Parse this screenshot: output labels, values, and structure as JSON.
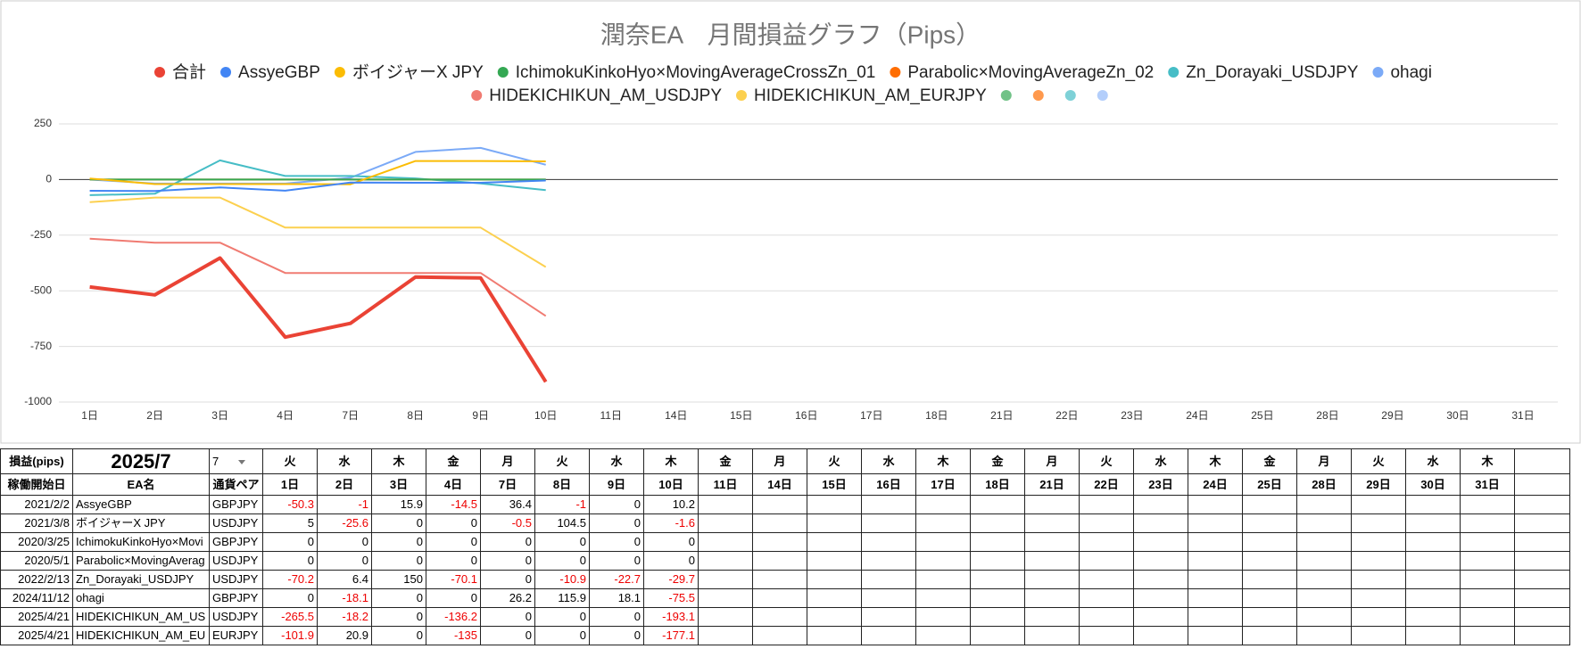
{
  "chart_data": {
    "type": "line",
    "title": "潤奈EA　月間損益グラフ（Pips）",
    "categories": [
      "1日",
      "2日",
      "3日",
      "4日",
      "7日",
      "8日",
      "9日",
      "10日",
      "11日",
      "14日",
      "15日",
      "16日",
      "17日",
      "18日",
      "21日",
      "22日",
      "23日",
      "24日",
      "25日",
      "28日",
      "29日",
      "30日",
      "31日"
    ],
    "ylim": [
      -1000,
      250
    ],
    "yticks": [
      -1000,
      -750,
      -500,
      -250,
      0,
      250
    ],
    "grid": true,
    "legend": "top",
    "series": [
      {
        "name": "合計",
        "color": "#ea4335",
        "values": [
          -482.9,
          -518.5,
          -352.6,
          -708.4,
          -646.3,
          -437.8,
          -442.4,
          -909.2,
          null,
          null,
          null,
          null,
          null,
          null,
          null,
          null,
          null,
          null,
          null,
          null,
          null,
          null,
          null
        ]
      },
      {
        "name": "AssyeGBP",
        "color": "#4285f4",
        "values": [
          -50.3,
          -51.3,
          -35.4,
          -49.9,
          -13.5,
          -14.5,
          -14.5,
          -4.3,
          null,
          null,
          null,
          null,
          null,
          null,
          null,
          null,
          null,
          null,
          null,
          null,
          null,
          null,
          null
        ]
      },
      {
        "name": "ボイジャーX JPY",
        "color": "#fbbc04",
        "values": [
          5,
          -20.6,
          -20.6,
          -20.6,
          -21.1,
          83.4,
          83.4,
          81.8,
          null,
          null,
          null,
          null,
          null,
          null,
          null,
          null,
          null,
          null,
          null,
          null,
          null,
          null,
          null
        ]
      },
      {
        "name": "IchimokuKinkoHyo×MovingAverageCrossZn_01",
        "color": "#34a853",
        "values": [
          0,
          0,
          0,
          0,
          0,
          0,
          0,
          0,
          null,
          null,
          null,
          null,
          null,
          null,
          null,
          null,
          null,
          null,
          null,
          null,
          null,
          null,
          null
        ]
      },
      {
        "name": "Parabolic×MovingAverageZn_02",
        "color": "#ff6d01",
        "values": [
          0,
          0,
          0,
          0,
          0,
          0,
          0,
          0,
          null,
          null,
          null,
          null,
          null,
          null,
          null,
          null,
          null,
          null,
          null,
          null,
          null,
          null,
          null
        ]
      },
      {
        "name": "Zn_Dorayaki_USDJPY",
        "color": "#46bdc6",
        "values": [
          -70.2,
          -63.8,
          86.2,
          16.1,
          16.1,
          5.2,
          -17.5,
          -47.2,
          null,
          null,
          null,
          null,
          null,
          null,
          null,
          null,
          null,
          null,
          null,
          null,
          null,
          null,
          null
        ]
      },
      {
        "name": "ohagi",
        "color": "#7baaf7",
        "values": [
          0,
          -18.1,
          -18.1,
          -18.1,
          8.1,
          124,
          142.1,
          66.6,
          null,
          null,
          null,
          null,
          null,
          null,
          null,
          null,
          null,
          null,
          null,
          null,
          null,
          null,
          null
        ]
      },
      {
        "name": "HIDEKICHIKUN_AM_USDJPY",
        "color": "#f07b72",
        "values": [
          -265.5,
          -283.7,
          -283.7,
          -419.9,
          -419.9,
          -419.9,
          -419.9,
          -613,
          null,
          null,
          null,
          null,
          null,
          null,
          null,
          null,
          null,
          null,
          null,
          null,
          null,
          null,
          null
        ]
      },
      {
        "name": "HIDEKICHIKUN_AM_EURJPY",
        "color": "#fcd04f",
        "values": [
          -101.9,
          -81,
          -81,
          -216,
          -216,
          -216,
          -216,
          -393.1,
          null,
          null,
          null,
          null,
          null,
          null,
          null,
          null,
          null,
          null,
          null,
          null,
          null,
          null,
          null
        ]
      },
      {
        "name": null,
        "color": "#71c287",
        "values": [
          null,
          null,
          null,
          null,
          null,
          null,
          null,
          null,
          null,
          null,
          null,
          null,
          null,
          null,
          null,
          null,
          null,
          null,
          null,
          null,
          null,
          null,
          null
        ]
      },
      {
        "name": null,
        "color": "#ff994d",
        "values": [
          null,
          null,
          null,
          null,
          null,
          null,
          null,
          null,
          null,
          null,
          null,
          null,
          null,
          null,
          null,
          null,
          null,
          null,
          null,
          null,
          null,
          null,
          null
        ]
      },
      {
        "name": null,
        "color": "#7ed1d7",
        "values": [
          null,
          null,
          null,
          null,
          null,
          null,
          null,
          null,
          null,
          null,
          null,
          null,
          null,
          null,
          null,
          null,
          null,
          null,
          null,
          null,
          null,
          null,
          null
        ]
      },
      {
        "name": null,
        "color": "#b3cefb",
        "values": [
          null,
          null,
          null,
          null,
          null,
          null,
          null,
          null,
          null,
          null,
          null,
          null,
          null,
          null,
          null,
          null,
          null,
          null,
          null,
          null,
          null,
          null,
          null
        ]
      }
    ]
  },
  "table": {
    "header": {
      "label": "損益(pips)",
      "month": "2025/7",
      "selector": "7"
    },
    "weekdays": [
      "火",
      "水",
      "木",
      "金",
      "月",
      "火",
      "水",
      "木",
      "金",
      "月",
      "火",
      "水",
      "木",
      "金",
      "月",
      "火",
      "水",
      "木",
      "金",
      "月",
      "火",
      "水",
      "木"
    ],
    "columns": [
      "稼働開始日",
      "EA名",
      "通貨ペア"
    ],
    "rows": [
      {
        "start": "2021/2/2",
        "name": "AssyeGBP",
        "pair": "GBPJPY",
        "values": [
          -50.3,
          -1,
          15.9,
          -14.5,
          36.4,
          -1,
          0,
          10.2
        ]
      },
      {
        "start": "2021/3/8",
        "name": "ボイジャーX JPY",
        "pair": "USDJPY",
        "values": [
          5,
          -25.6,
          0,
          0,
          -0.5,
          104.5,
          0,
          -1.6
        ]
      },
      {
        "start": "2020/3/25",
        "name": "IchimokuKinkoHyo×Movi",
        "pair": "GBPJPY",
        "values": [
          0,
          0,
          0,
          0,
          0,
          0,
          0,
          0
        ]
      },
      {
        "start": "2020/5/1",
        "name": "Parabolic×MovingAverag",
        "pair": "USDJPY",
        "values": [
          0,
          0,
          0,
          0,
          0,
          0,
          0,
          0
        ]
      },
      {
        "start": "2022/2/13",
        "name": "Zn_Dorayaki_USDJPY",
        "pair": "USDJPY",
        "values": [
          -70.2,
          6.4,
          150,
          -70.1,
          0,
          -10.9,
          -22.7,
          -29.7
        ]
      },
      {
        "start": "2024/11/12",
        "name": "ohagi",
        "pair": "GBPJPY",
        "values": [
          0,
          -18.1,
          0,
          0,
          26.2,
          115.9,
          18.1,
          -75.5
        ]
      },
      {
        "start": "2025/4/21",
        "name": "HIDEKICHIKUN_AM_US",
        "pair": "USDJPY",
        "values": [
          -265.5,
          -18.2,
          0,
          -136.2,
          0,
          0,
          0,
          -193.1
        ]
      },
      {
        "start": "2025/4/21",
        "name": "HIDEKICHIKUN_AM_EU",
        "pair": "EURJPY",
        "values": [
          -101.9,
          20.9,
          0,
          -135,
          0,
          0,
          0,
          -177.1
        ]
      }
    ]
  }
}
